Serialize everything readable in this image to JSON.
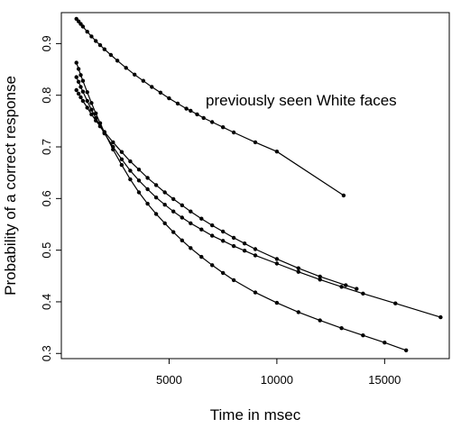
{
  "chart_data": {
    "type": "line",
    "title": "",
    "xlabel": "Time in msec",
    "ylabel": "Probability of a correct response",
    "annotation": "previously seen White faces",
    "xlim": [
      0,
      18000
    ],
    "ylim": [
      0.29,
      0.96
    ],
    "xticks": [
      5000,
      10000,
      15000
    ],
    "yticks": [
      0.3,
      0.4,
      0.5,
      0.6,
      0.7,
      0.8,
      0.9
    ],
    "line_color": "#000000",
    "series": [
      {
        "x": [
          700,
          800,
          900,
          1000,
          1200,
          1400,
          1600,
          1800,
          2000,
          2300,
          2600,
          3000,
          3400,
          3800,
          4200,
          4600,
          5000,
          5400,
          5800,
          6000,
          6300,
          6600,
          7000,
          7500,
          8000,
          9000,
          10000,
          13100
        ],
        "y": [
          0.948,
          0.943,
          0.938,
          0.933,
          0.923,
          0.914,
          0.905,
          0.897,
          0.889,
          0.878,
          0.867,
          0.853,
          0.84,
          0.828,
          0.816,
          0.805,
          0.794,
          0.784,
          0.774,
          0.77,
          0.763,
          0.756,
          0.748,
          0.738,
          0.728,
          0.709,
          0.691,
          0.606
        ]
      },
      {
        "x": [
          700,
          800,
          900,
          1000,
          1200,
          1400,
          1600,
          1800,
          2000,
          2400,
          2800,
          3200,
          3600,
          4000,
          4400,
          4800,
          5200,
          5600,
          6000,
          6500,
          7000,
          7500,
          8000,
          8500,
          9000,
          10000,
          11000,
          12000,
          13200,
          13700
        ],
        "y": [
          0.81,
          0.803,
          0.796,
          0.789,
          0.776,
          0.763,
          0.751,
          0.74,
          0.729,
          0.709,
          0.69,
          0.672,
          0.656,
          0.64,
          0.626,
          0.612,
          0.599,
          0.587,
          0.575,
          0.561,
          0.548,
          0.536,
          0.524,
          0.513,
          0.502,
          0.483,
          0.465,
          0.449,
          0.432,
          0.425
        ]
      },
      {
        "x": [
          700,
          800,
          900,
          1000,
          1200,
          1400,
          1600,
          1800,
          2000,
          2400,
          2800,
          3200,
          3600,
          4000,
          4400,
          4800,
          5200,
          5600,
          6000,
          6500,
          7000,
          7500,
          8000,
          8500,
          9000,
          10000,
          11000,
          12000,
          13000,
          14000,
          15500,
          17600
        ],
        "y": [
          0.835,
          0.826,
          0.816,
          0.807,
          0.789,
          0.772,
          0.756,
          0.74,
          0.726,
          0.7,
          0.676,
          0.654,
          0.635,
          0.618,
          0.602,
          0.588,
          0.575,
          0.563,
          0.552,
          0.54,
          0.528,
          0.518,
          0.508,
          0.499,
          0.49,
          0.474,
          0.458,
          0.443,
          0.429,
          0.416,
          0.397,
          0.37
        ]
      },
      {
        "x": [
          700,
          800,
          900,
          1000,
          1200,
          1400,
          1600,
          1800,
          2000,
          2400,
          2800,
          3200,
          3600,
          4000,
          4400,
          4800,
          5200,
          5600,
          6000,
          6500,
          7000,
          7500,
          8000,
          9000,
          10000,
          11000,
          12000,
          13000,
          14000,
          15000,
          16000
        ],
        "y": [
          0.863,
          0.851,
          0.839,
          0.828,
          0.806,
          0.785,
          0.765,
          0.746,
          0.728,
          0.695,
          0.665,
          0.637,
          0.612,
          0.59,
          0.57,
          0.552,
          0.535,
          0.519,
          0.504,
          0.487,
          0.471,
          0.456,
          0.442,
          0.418,
          0.398,
          0.38,
          0.364,
          0.349,
          0.335,
          0.321,
          0.306
        ]
      }
    ]
  }
}
